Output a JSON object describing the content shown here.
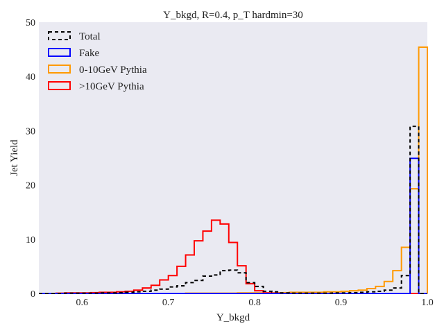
{
  "chart_data": {
    "type": "histogram-step",
    "title": "Y_bkgd, R=0.4, p_T hardmin=30",
    "xlabel": "Y_bkgd",
    "ylabel": "Jet Yield",
    "xlim": [
      0.55,
      1.0
    ],
    "ylim": [
      0,
      50
    ],
    "xticks": [
      "0.6",
      "0.7",
      "0.8",
      "0.9",
      "1.0"
    ],
    "yticks": [
      "0",
      "10",
      "20",
      "30",
      "40",
      "50"
    ],
    "grid": false,
    "background": "#eaeaf2",
    "legend_position": "top-left",
    "bin_edges": [
      0.55,
      0.56,
      0.57,
      0.58,
      0.59,
      0.6,
      0.61,
      0.62,
      0.63,
      0.64,
      0.65,
      0.66,
      0.67,
      0.68,
      0.69,
      0.7,
      0.71,
      0.72,
      0.73,
      0.74,
      0.75,
      0.76,
      0.77,
      0.78,
      0.79,
      0.8,
      0.81,
      0.82,
      0.83,
      0.84,
      0.85,
      0.86,
      0.87,
      0.88,
      0.89,
      0.9,
      0.91,
      0.92,
      0.93,
      0.94,
      0.95,
      0.96,
      0.97,
      0.98,
      0.99,
      1.0
    ],
    "series": [
      {
        "name": "Total",
        "color": "#000000",
        "dashed": true,
        "values": [
          0,
          0,
          0,
          0.05,
          0.05,
          0.05,
          0.05,
          0.1,
          0.1,
          0.15,
          0.2,
          0.3,
          0.4,
          0.6,
          0.8,
          1.2,
          1.4,
          2.0,
          2.4,
          3.2,
          3.4,
          4.2,
          4.3,
          3.8,
          2.0,
          1.3,
          0.4,
          0.3,
          0.1,
          0.05,
          0.05,
          0.05,
          0.05,
          0.05,
          0.1,
          0.1,
          0.15,
          0.2,
          0.3,
          0.4,
          0.6,
          1.0,
          3.3,
          30.8,
          0
        ]
      },
      {
        "name": "Fake",
        "color": "#0000ff",
        "dashed": false,
        "values": [
          0,
          0,
          0,
          0,
          0,
          0,
          0,
          0,
          0,
          0,
          0,
          0,
          0,
          0,
          0,
          0,
          0,
          0,
          0,
          0,
          0,
          0,
          0,
          0,
          0,
          0,
          0,
          0,
          0,
          0,
          0,
          0,
          0,
          0,
          0,
          0,
          0,
          0,
          0,
          0,
          0,
          0,
          0,
          24.9,
          0
        ]
      },
      {
        "name": "0-10GeV Pythia",
        "color": "#ff9900",
        "dashed": false,
        "values": [
          0,
          0,
          0,
          0,
          0,
          0,
          0,
          0,
          0,
          0,
          0,
          0,
          0,
          0,
          0,
          0,
          0,
          0.05,
          0.05,
          0.05,
          0.05,
          0.05,
          0.05,
          0.1,
          0.1,
          0.1,
          0.1,
          0.1,
          0.15,
          0.2,
          0.2,
          0.2,
          0.2,
          0.3,
          0.3,
          0.4,
          0.5,
          0.6,
          0.9,
          1.3,
          2.2,
          4.2,
          8.5,
          19.3,
          45.4
        ]
      },
      {
        "name": ">10GeV Pythia",
        "color": "#ff0000",
        "dashed": false,
        "values": [
          0,
          0,
          0.05,
          0.1,
          0.1,
          0.1,
          0.15,
          0.2,
          0.2,
          0.3,
          0.4,
          0.6,
          1.0,
          1.5,
          2.5,
          3.3,
          5.0,
          7.1,
          9.7,
          11.5,
          13.5,
          12.8,
          9.4,
          5.1,
          1.8,
          0.5,
          0.1,
          0.05,
          0,
          0,
          0,
          0,
          0,
          0,
          0,
          0,
          0,
          0,
          0,
          0,
          0,
          0,
          0,
          0,
          0
        ]
      }
    ]
  }
}
